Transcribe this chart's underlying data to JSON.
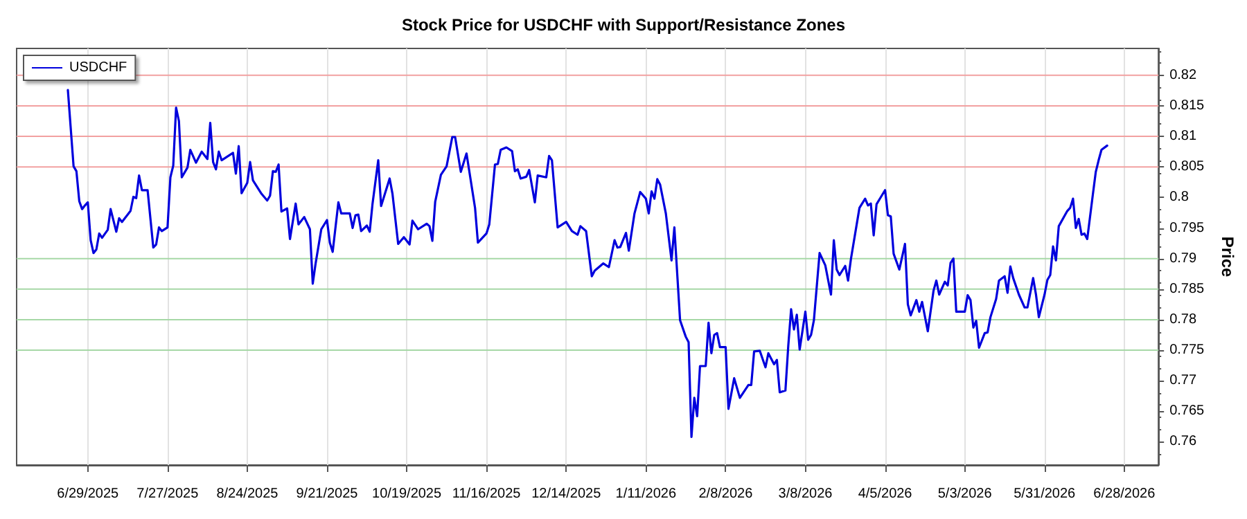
{
  "chart_data": {
    "type": "line",
    "title": "Stock Price for USDCHF with Support/Resistance Zones",
    "ylabel": "Price",
    "x": [
      "2025-06-22",
      "2025-06-24",
      "2025-06-25",
      "2025-06-26",
      "2025-06-27",
      "2025-06-28",
      "2025-06-29",
      "2025-06-30",
      "2025-07-01",
      "2025-07-02",
      "2025-07-03",
      "2025-07-04",
      "2025-07-06",
      "2025-07-07",
      "2025-07-09",
      "2025-07-10",
      "2025-07-11",
      "2025-07-14",
      "2025-07-15",
      "2025-07-16",
      "2025-07-17",
      "2025-07-18",
      "2025-07-20",
      "2025-07-22",
      "2025-07-23",
      "2025-07-24",
      "2025-07-25",
      "2025-07-27",
      "2025-07-28",
      "2025-07-29",
      "2025-07-30",
      "2025-07-31",
      "2025-08-01",
      "2025-08-03",
      "2025-08-04",
      "2025-08-06",
      "2025-08-08",
      "2025-08-10",
      "2025-08-11",
      "2025-08-12",
      "2025-08-13",
      "2025-08-14",
      "2025-08-15",
      "2025-08-19",
      "2025-08-20",
      "2025-08-21",
      "2025-08-22",
      "2025-08-24",
      "2025-08-25",
      "2025-08-26",
      "2025-08-29",
      "2025-08-31",
      "2025-09-01",
      "2025-09-02",
      "2025-09-03",
      "2025-09-04",
      "2025-09-05",
      "2025-09-07",
      "2025-09-08",
      "2025-09-10",
      "2025-09-11",
      "2025-09-13",
      "2025-09-15",
      "2025-09-16",
      "2025-09-17",
      "2025-09-19",
      "2025-09-21",
      "2025-09-22",
      "2025-09-23",
      "2025-09-25",
      "2025-09-26",
      "2025-09-29",
      "2025-09-30",
      "2025-10-01",
      "2025-10-02",
      "2025-10-03",
      "2025-10-05",
      "2025-10-06",
      "2025-10-07",
      "2025-10-09",
      "2025-10-10",
      "2025-10-13",
      "2025-10-14",
      "2025-10-16",
      "2025-10-18",
      "2025-10-20",
      "2025-10-21",
      "2025-10-23",
      "2025-10-26",
      "2025-10-27",
      "2025-10-28",
      "2025-10-29",
      "2025-10-31",
      "2025-11-02",
      "2025-11-04",
      "2025-11-05",
      "2025-11-07",
      "2025-11-09",
      "2025-11-12",
      "2025-11-13",
      "2025-11-16",
      "2025-11-17",
      "2025-11-19",
      "2025-11-20",
      "2025-11-21",
      "2025-11-23",
      "2025-11-25",
      "2025-11-26",
      "2025-11-27",
      "2025-11-28",
      "2025-11-30",
      "2025-12-01",
      "2025-12-03",
      "2025-12-04",
      "2025-12-07",
      "2025-12-08",
      "2025-12-09",
      "2025-12-11",
      "2025-12-14",
      "2025-12-16",
      "2025-12-18",
      "2025-12-19",
      "2025-12-21",
      "2025-12-23",
      "2025-12-24",
      "2025-12-27",
      "2025-12-29",
      "2025-12-31",
      "2026-01-01",
      "2026-01-02",
      "2026-01-04",
      "2026-01-05",
      "2026-01-07",
      "2026-01-09",
      "2026-01-11",
      "2026-01-12",
      "2026-01-13",
      "2026-01-14",
      "2026-01-15",
      "2026-01-16",
      "2026-01-18",
      "2026-01-20",
      "2026-01-21",
      "2026-01-23",
      "2026-01-25",
      "2026-01-26",
      "2026-01-27",
      "2026-01-28",
      "2026-01-29",
      "2026-01-30",
      "2026-02-01",
      "2026-02-02",
      "2026-02-03",
      "2026-02-04",
      "2026-02-05",
      "2026-02-06",
      "2026-02-08",
      "2026-02-09",
      "2026-02-11",
      "2026-02-13",
      "2026-02-16",
      "2026-02-17",
      "2026-02-18",
      "2026-02-20",
      "2026-02-22",
      "2026-02-23",
      "2026-02-25",
      "2026-02-26",
      "2026-02-27",
      "2026-03-01",
      "2026-03-02",
      "2026-03-03",
      "2026-03-04",
      "2026-03-05",
      "2026-03-06",
      "2026-03-08",
      "2026-03-09",
      "2026-03-10",
      "2026-03-11",
      "2026-03-13",
      "2026-03-15",
      "2026-03-17",
      "2026-03-18",
      "2026-03-19",
      "2026-03-20",
      "2026-03-22",
      "2026-03-23",
      "2026-03-24",
      "2026-03-27",
      "2026-03-29",
      "2026-03-30",
      "2026-03-31",
      "2026-04-01",
      "2026-04-02",
      "2026-04-05",
      "2026-04-06",
      "2026-04-07",
      "2026-04-08",
      "2026-04-10",
      "2026-04-12",
      "2026-04-13",
      "2026-04-14",
      "2026-04-16",
      "2026-04-17",
      "2026-04-18",
      "2026-04-20",
      "2026-04-22",
      "2026-04-23",
      "2026-04-24",
      "2026-04-26",
      "2026-04-27",
      "2026-04-28",
      "2026-04-29",
      "2026-04-30",
      "2026-05-03",
      "2026-05-04",
      "2026-05-05",
      "2026-05-06",
      "2026-05-07",
      "2026-05-08",
      "2026-05-10",
      "2026-05-11",
      "2026-05-12",
      "2026-05-14",
      "2026-05-15",
      "2026-05-17",
      "2026-05-18",
      "2026-05-19",
      "2026-05-20",
      "2026-05-22",
      "2026-05-24",
      "2026-05-25",
      "2026-05-27",
      "2026-05-28",
      "2026-05-29",
      "2026-05-31",
      "2026-06-01",
      "2026-06-02",
      "2026-06-03",
      "2026-06-04",
      "2026-06-05",
      "2026-06-08",
      "2026-06-09",
      "2026-06-10",
      "2026-06-11",
      "2026-06-12",
      "2026-06-13",
      "2026-06-14",
      "2026-06-15",
      "2026-06-17",
      "2026-06-18",
      "2026-06-19",
      "2026-06-20",
      "2026-06-22"
    ],
    "series": [
      {
        "name": "USDCHF",
        "color": "#0000dd",
        "values": [
          0.8176,
          0.8051,
          0.8043,
          0.7994,
          0.7981,
          0.7987,
          0.7992,
          0.793,
          0.7909,
          0.7915,
          0.7941,
          0.7934,
          0.7947,
          0.7981,
          0.7944,
          0.7966,
          0.796,
          0.7978,
          0.8001,
          0.7999,
          0.8036,
          0.8012,
          0.8012,
          0.7918,
          0.7923,
          0.7951,
          0.7945,
          0.7951,
          0.8033,
          0.8052,
          0.8147,
          0.8125,
          0.8033,
          0.8049,
          0.8078,
          0.8057,
          0.8075,
          0.8063,
          0.8122,
          0.8058,
          0.8046,
          0.8075,
          0.8061,
          0.8073,
          0.8039,
          0.8084,
          0.8007,
          0.8024,
          0.8058,
          0.8028,
          0.8006,
          0.7995,
          0.8003,
          0.8043,
          0.8042,
          0.8054,
          0.7977,
          0.7982,
          0.7932,
          0.799,
          0.7956,
          0.7968,
          0.7948,
          0.7859,
          0.7892,
          0.7948,
          0.7963,
          0.7926,
          0.7911,
          0.7992,
          0.7974,
          0.7974,
          0.795,
          0.7971,
          0.7972,
          0.7945,
          0.7954,
          0.7944,
          0.799,
          0.8061,
          0.7986,
          0.8031,
          0.8006,
          0.7924,
          0.7935,
          0.7923,
          0.7962,
          0.7948,
          0.7957,
          0.7953,
          0.7929,
          0.7993,
          0.8037,
          0.8051,
          0.8099,
          0.8099,
          0.8042,
          0.8072,
          0.7983,
          0.7926,
          0.7941,
          0.7956,
          0.8054,
          0.8055,
          0.8078,
          0.8082,
          0.8076,
          0.8043,
          0.8046,
          0.8031,
          0.8034,
          0.8045,
          0.7992,
          0.8036,
          0.8033,
          0.8068,
          0.8061,
          0.7951,
          0.796,
          0.7945,
          0.7939,
          0.7953,
          0.7945,
          0.7871,
          0.788,
          0.7892,
          0.7886,
          0.793,
          0.7918,
          0.7919,
          0.7942,
          0.7913,
          0.7974,
          0.8009,
          0.7998,
          0.7974,
          0.801,
          0.7998,
          0.803,
          0.8021,
          0.7974,
          0.7897,
          0.7951,
          0.7799,
          0.7772,
          0.7763,
          0.7608,
          0.7672,
          0.7642,
          0.7724,
          0.7724,
          0.7795,
          0.7745,
          0.7775,
          0.7778,
          0.7755,
          0.7755,
          0.7654,
          0.7704,
          0.7672,
          0.7693,
          0.7693,
          0.7748,
          0.7749,
          0.7722,
          0.7745,
          0.7727,
          0.7734,
          0.7681,
          0.7684,
          0.7757,
          0.7817,
          0.7784,
          0.7808,
          0.7751,
          0.7813,
          0.7767,
          0.7775,
          0.7799,
          0.7909,
          0.7889,
          0.7841,
          0.793,
          0.7882,
          0.7873,
          0.7888,
          0.7864,
          0.7899,
          0.7983,
          0.7998,
          0.7987,
          0.799,
          0.7938,
          0.7989,
          0.8012,
          0.7971,
          0.7969,
          0.7908,
          0.7882,
          0.7924,
          0.7825,
          0.7807,
          0.7832,
          0.7813,
          0.7829,
          0.7781,
          0.7847,
          0.7864,
          0.7841,
          0.7862,
          0.7856,
          0.7893,
          0.79,
          0.7813,
          0.7813,
          0.784,
          0.7832,
          0.7787,
          0.7798,
          0.7754,
          0.7778,
          0.7779,
          0.7804,
          0.7834,
          0.7864,
          0.7871,
          0.7844,
          0.7887,
          0.7868,
          0.7841,
          0.782,
          0.782,
          0.7868,
          0.7841,
          0.7804,
          0.7841,
          0.7865,
          0.7873,
          0.792,
          0.7897,
          0.7953,
          0.7978,
          0.7983,
          0.7998,
          0.795,
          0.7965,
          0.7939,
          0.7941,
          0.7932,
          0.8006,
          0.8042,
          0.8061,
          0.8078,
          0.8085
        ]
      }
    ],
    "xlim": [
      "2025-06-04",
      "2026-07-10"
    ],
    "xticks": [
      {
        "value": "2025-06-29",
        "label": "6/29/2025"
      },
      {
        "value": "2025-07-27",
        "label": "7/27/2025"
      },
      {
        "value": "2025-08-24",
        "label": "8/24/2025"
      },
      {
        "value": "2025-09-21",
        "label": "9/21/2025"
      },
      {
        "value": "2025-10-19",
        "label": "10/19/2025"
      },
      {
        "value": "2025-11-16",
        "label": "11/16/2025"
      },
      {
        "value": "2025-12-14",
        "label": "12/14/2025"
      },
      {
        "value": "2026-01-11",
        "label": "1/11/2026"
      },
      {
        "value": "2026-02-08",
        "label": "2/8/2026"
      },
      {
        "value": "2026-03-08",
        "label": "3/8/2026"
      },
      {
        "value": "2026-04-05",
        "label": "4/5/2026"
      },
      {
        "value": "2026-05-03",
        "label": "5/3/2026"
      },
      {
        "value": "2026-05-31",
        "label": "5/31/2026"
      },
      {
        "value": "2026-06-28",
        "label": "6/28/2026"
      }
    ],
    "ylim": [
      0.7562,
      0.8244
    ],
    "yticks": [
      0.76,
      0.765,
      0.77,
      0.775,
      0.78,
      0.785,
      0.79,
      0.795,
      0.8,
      0.805,
      0.81,
      0.815,
      0.82
    ],
    "ref_lines": [
      {
        "axis": "y",
        "value": 0.805,
        "color": "#f2a0a0"
      },
      {
        "axis": "y",
        "value": 0.81,
        "color": "#f2a0a0"
      },
      {
        "axis": "y",
        "value": 0.815,
        "color": "#f2a0a0"
      },
      {
        "axis": "y",
        "value": 0.82,
        "color": "#f2a0a0"
      },
      {
        "axis": "y",
        "value": 0.775,
        "color": "#a6d8a6"
      },
      {
        "axis": "y",
        "value": 0.78,
        "color": "#a6d8a6"
      },
      {
        "axis": "y",
        "value": 0.785,
        "color": "#a6d8a6"
      },
      {
        "axis": "y",
        "value": 0.79,
        "color": "#a6d8a6"
      }
    ],
    "grid": "x",
    "legend": "top left",
    "marker": "none",
    "line_style": "solid"
  }
}
